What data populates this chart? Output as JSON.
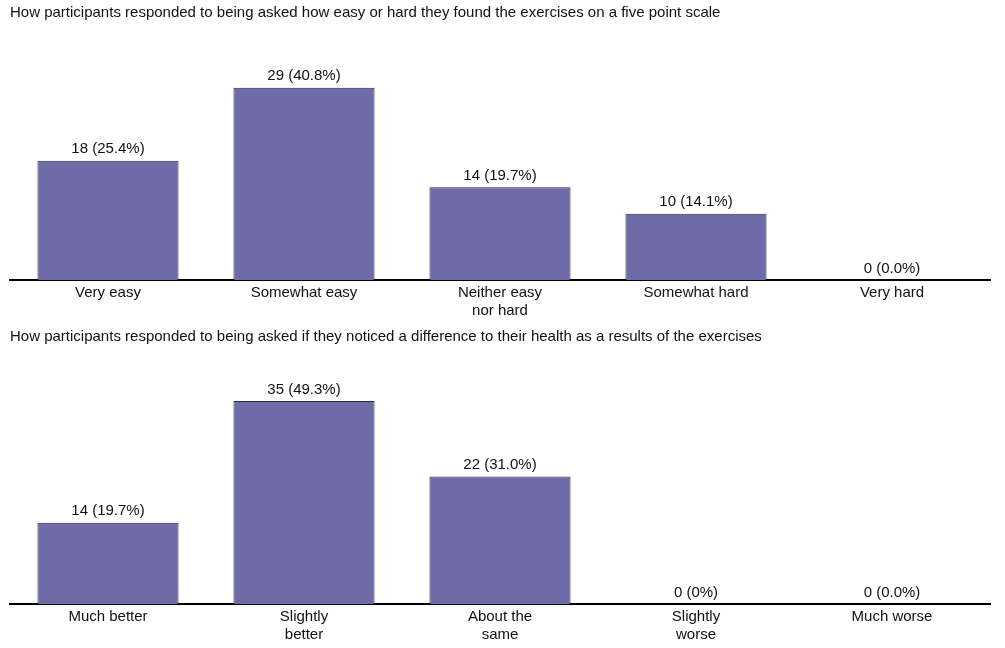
{
  "chart_data": [
    {
      "type": "bar",
      "title": "How participants responded to being asked how easy or hard they found the exercises on a five point scale",
      "categories": [
        "Very easy",
        "Somewhat easy",
        "Neither easy nor hard",
        "Somewhat hard",
        "Very hard"
      ],
      "values": [
        18,
        29,
        14,
        10,
        0
      ],
      "value_labels": [
        "18 (25.4%)",
        "29 (40.8%)",
        "14 (19.7%)",
        "10 (14.1%)",
        "0 (0.0%)"
      ],
      "color": "#6f6aa8",
      "legend": false
    },
    {
      "type": "bar",
      "title": "How participants responded to being asked if they noticed a difference to their health as a results of the exercises",
      "categories": [
        "Much better",
        "Slightly better",
        "About the same",
        "Slightly worse",
        "Much worse"
      ],
      "values": [
        14,
        35,
        22,
        0,
        0
      ],
      "value_labels": [
        "14 (19.7%)",
        "35 (49.3%)",
        "22 (31.0%)",
        "0 (0%)",
        "0 (0.0%)"
      ],
      "color": "#6f6aa8",
      "legend": false
    }
  ]
}
